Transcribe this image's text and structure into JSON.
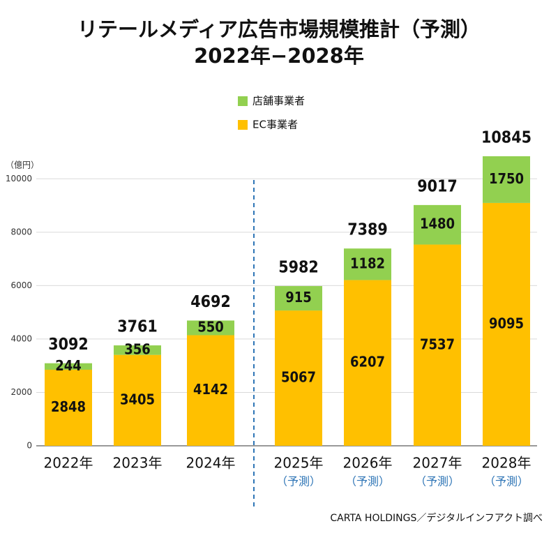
{
  "chart_data": {
    "type": "stacked_bar",
    "title": "リテールメディア広告市場規模推計（予測）",
    "subtitle": "2022年−2028年",
    "y_unit": "（億円）",
    "source": "CARTA HOLDINGS／デジタルインフアクト調べ",
    "categories": [
      "2022年",
      "2023年",
      "2024年",
      "2025年",
      "2026年",
      "2027年",
      "2028年"
    ],
    "category_notes": [
      null,
      null,
      null,
      "（予測）",
      "（予測）",
      "（予測）",
      "（予測）"
    ],
    "series": [
      {
        "name": "EC事業者",
        "color": "#ffc000",
        "values": [
          2848,
          3405,
          4142,
          5067,
          6207,
          7537,
          9095
        ]
      },
      {
        "name": "店舗事業者",
        "color": "#92d050",
        "values": [
          244,
          356,
          550,
          915,
          1182,
          1480,
          1750
        ]
      }
    ],
    "totals": [
      3092,
      3761,
      4692,
      5982,
      7389,
      9017,
      10845
    ],
    "ylim": [
      0,
      11000
    ],
    "yticks": [
      0,
      2000,
      4000,
      6000,
      8000,
      10000
    ],
    "grid": true
  }
}
